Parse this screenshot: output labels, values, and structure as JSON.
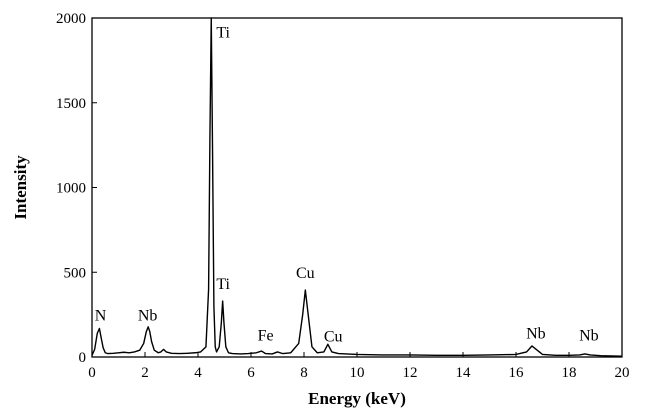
{
  "chart_data": {
    "type": "line",
    "title": "",
    "xlabel": "Energy (keV)",
    "ylabel": "Intensity",
    "xlim": [
      0,
      20
    ],
    "ylim": [
      0,
      2000
    ],
    "xticks": [
      "0",
      "2",
      "4",
      "6",
      "8",
      "10",
      "12",
      "14",
      "16",
      "18",
      "20"
    ],
    "yticks": [
      "0",
      "500",
      "1000",
      "1500",
      "2000"
    ],
    "grid": false,
    "legend": "none",
    "series": [
      {
        "color": "#000000",
        "x": [
          0.0,
          0.1,
          0.2,
          0.28,
          0.35,
          0.42,
          0.5,
          0.6,
          0.8,
          1.0,
          1.2,
          1.4,
          1.6,
          1.8,
          1.95,
          2.05,
          2.12,
          2.18,
          2.25,
          2.35,
          2.5,
          2.6,
          2.7,
          2.8,
          3.0,
          3.3,
          3.6,
          3.9,
          4.1,
          4.3,
          4.4,
          4.45,
          4.5,
          4.55,
          4.6,
          4.65,
          4.7,
          4.8,
          4.88,
          4.93,
          4.98,
          5.05,
          5.15,
          5.3,
          5.6,
          5.9,
          6.2,
          6.4,
          6.55,
          6.8,
          7.0,
          7.2,
          7.5,
          7.8,
          7.95,
          8.05,
          8.15,
          8.3,
          8.5,
          8.75,
          8.9,
          9.05,
          9.3,
          10.0,
          11.0,
          12.0,
          13.0,
          14.0,
          15.0,
          16.0,
          16.4,
          16.6,
          16.8,
          17.0,
          17.5,
          18.0,
          18.4,
          18.6,
          18.8,
          19.2,
          20.0
        ],
        "y": [
          10,
          45,
          140,
          168,
          110,
          55,
          25,
          20,
          22,
          25,
          28,
          25,
          30,
          40,
          80,
          150,
          178,
          150,
          90,
          40,
          25,
          30,
          45,
          30,
          22,
          20,
          22,
          25,
          30,
          60,
          400,
          1300,
          2000,
          1200,
          300,
          60,
          30,
          60,
          200,
          330,
          200,
          60,
          25,
          20,
          18,
          20,
          25,
          35,
          20,
          18,
          30,
          20,
          25,
          80,
          250,
          395,
          260,
          60,
          25,
          30,
          75,
          30,
          20,
          15,
          12,
          12,
          10,
          10,
          12,
          15,
          30,
          65,
          40,
          15,
          10,
          10,
          12,
          18,
          12,
          8,
          5
        ]
      }
    ],
    "annotations": [
      {
        "text": "N",
        "x": 0.32,
        "y": 215
      },
      {
        "text": "Nb",
        "x": 2.1,
        "y": 215
      },
      {
        "text": "Ti",
        "x": 4.95,
        "y": 1885
      },
      {
        "text": "Ti",
        "x": 4.95,
        "y": 400
      },
      {
        "text": "Fe",
        "x": 6.55,
        "y": 98
      },
      {
        "text": "Cu",
        "x": 8.05,
        "y": 465
      },
      {
        "text": "Cu",
        "x": 9.1,
        "y": 92
      },
      {
        "text": "Nb",
        "x": 16.75,
        "y": 110
      },
      {
        "text": "Nb",
        "x": 18.75,
        "y": 98
      }
    ]
  }
}
